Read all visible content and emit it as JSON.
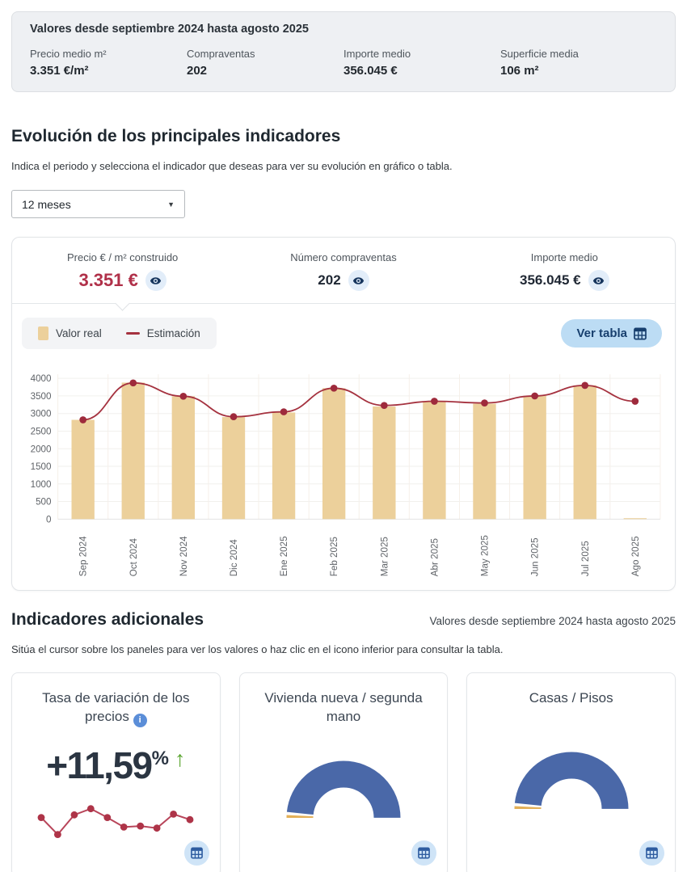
{
  "summary": {
    "title": "Valores desde septiembre 2024 hasta agosto 2025",
    "stats": [
      {
        "label": "Precio medio m²",
        "value": "3.351 €/m²"
      },
      {
        "label": "Compraventas",
        "value": "202"
      },
      {
        "label": "Importe medio",
        "value": "356.045 €"
      },
      {
        "label": "Superficie media",
        "value": "106 m²"
      }
    ]
  },
  "evolution": {
    "title": "Evolución de los principales indicadores",
    "description": "Indica el periodo y selecciona el indicador que deseas para ver su evolución en gráfico o tabla.",
    "period_selected": "12 meses"
  },
  "indicators": [
    {
      "label": "Precio € / m² construido",
      "value": "3.351 €",
      "selected": true
    },
    {
      "label": "Número compraventas",
      "value": "202",
      "selected": false
    },
    {
      "label": "Importe medio",
      "value": "356.045 €",
      "selected": false
    }
  ],
  "ver_tabla_label": "Ver tabla",
  "chart_data": {
    "type": "bar",
    "title": "",
    "categories": [
      "Sep 2024",
      "Oct 2024",
      "Nov 2024",
      "Dic 2024",
      "Ene 2025",
      "Feb 2025",
      "Mar 2025",
      "Abr 2025",
      "May 2025",
      "Jun 2025",
      "Jul 2025",
      "Ago 2025"
    ],
    "series": [
      {
        "name": "Valor real",
        "type": "bar",
        "color": "#ecd09b",
        "values": [
          2820,
          3880,
          3490,
          2900,
          3030,
          3720,
          3200,
          3330,
          3280,
          3500,
          3800,
          25
        ]
      },
      {
        "name": "Estimación",
        "type": "line",
        "color": "#a5323f",
        "values": [
          2820,
          3870,
          3490,
          2910,
          3050,
          3720,
          3230,
          3350,
          3300,
          3500,
          3800,
          3350
        ]
      }
    ],
    "ylim": [
      0,
      4000
    ],
    "ytick_step": 500,
    "grid": true,
    "legend_position": "top-left"
  },
  "additional": {
    "title": "Indicadores adicionales",
    "note": "Valores desde septiembre 2024 hasta agosto 2025",
    "description": "Sitúa el cursor sobre los paneles para ver los valores o haz clic en el icono inferior para consultar la tabla."
  },
  "cards": [
    {
      "title": "Tasa de variación de los precios",
      "value": "+11,59",
      "value_suffix": "%",
      "trend": "up",
      "trend_arrow": "↑",
      "sparkline": [
        58,
        8,
        66,
        84,
        58,
        30,
        33,
        27,
        68,
        52
      ]
    },
    {
      "title": "Vivienda nueva / segunda mano",
      "gauge": {
        "segments": [
          {
            "label": "Vivienda nueva",
            "pct": 2.5,
            "color": "#e3b058"
          },
          {
            "label": "Segunda mano",
            "pct": 97.5,
            "color": "#4a68a8"
          }
        ]
      }
    },
    {
      "title": "Casas / Pisos",
      "gauge": {
        "segments": [
          {
            "label": "Casas",
            "pct": 2.5,
            "color": "#e3b058"
          },
          {
            "label": "Pisos",
            "pct": 97.5,
            "color": "#4a68a8"
          }
        ]
      }
    }
  ],
  "colors": {
    "accent_red": "#b03049",
    "bar_fill": "#ecd09b",
    "line_red": "#a5323f",
    "dot_red": "#9e2a3c",
    "navy_eye": "#16355d",
    "pill_blue_bg": "#bcdcf4",
    "icon_circle_bg": "#cfe4f7",
    "icon_glyph": "#2e5ca0",
    "info_blue": "#5b8ed8",
    "green_up": "#57a42d",
    "gauge_blue": "#4a68a8",
    "gauge_tan": "#e3b058"
  }
}
